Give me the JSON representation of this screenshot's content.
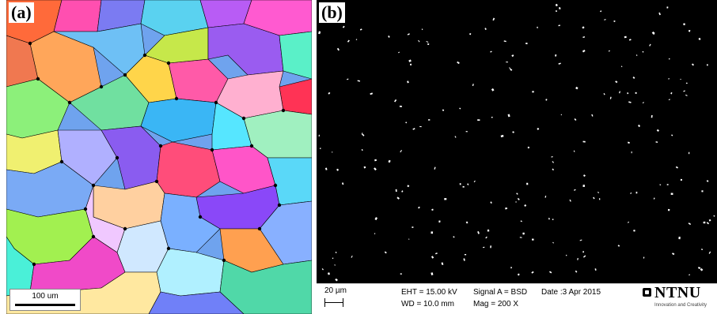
{
  "panel_a": {
    "label": "(a)",
    "scale_bar": "100 um",
    "image_description_icon": "ebsd-grain-map-icon"
  },
  "panel_b": {
    "label": "(b)",
    "data_bar": {
      "scale": "20 µm",
      "eht": "EHT = 15.00 kV",
      "wd": "WD = 10.0 mm",
      "signal": "Signal A = BSD",
      "mag": "Mag =    200 X",
      "date": "Date :3 Apr 2015",
      "logo": "NTNU",
      "logo_sub": "Innovation and Creativity"
    },
    "image_description_icon": "sem-bsd-micrograph-icon"
  }
}
